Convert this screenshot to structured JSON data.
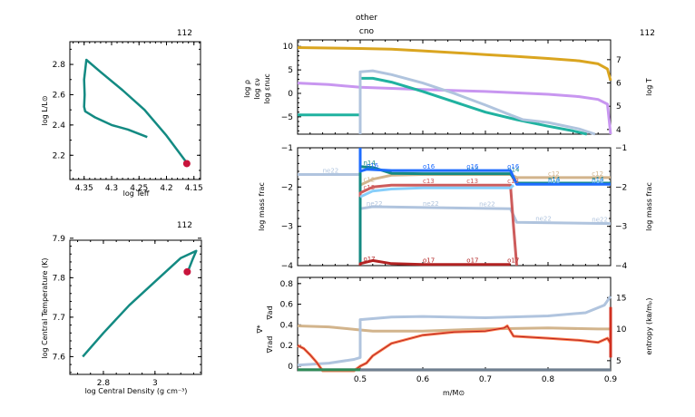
{
  "model_number": "112",
  "colors": {
    "track": "#138a82",
    "marker": "#c8143c",
    "logT": "#daa520",
    "logRho": "#c896f0",
    "eps_nu": "#20b2a0",
    "eps_nuc": "#b0c4de",
    "n14": "#138a82",
    "o16": "#1e6cff",
    "c12": "#d2b48c",
    "c13": "#cd5c5c",
    "n15": "#87cefa",
    "ne22": "#b0c4de",
    "o17": "#b22222",
    "grad_ad": "#d2b48c",
    "grad_star": "#b22222",
    "grad_rad": "#ff7f50",
    "entropy": "#b0c4de",
    "bottom_line": "#708090",
    "bottom_green": "#2e8b57"
  },
  "chart_data": [
    {
      "id": "hr",
      "type": "line",
      "title": "112",
      "xlabel": "log Teff",
      "ylabel": "log L/L⊙",
      "xlim": [
        4.376,
        4.138
      ],
      "ylim": [
        2.04,
        2.95
      ],
      "xticks": [
        4.35,
        4.3,
        4.25,
        4.2,
        4.15
      ],
      "xtick_labels": [
        "4.35",
        "4.3",
        "4.25",
        "4.2",
        "4.15"
      ],
      "yticks": [
        2.2,
        2.4,
        2.6,
        2.8
      ],
      "ytick_labels": [
        "2.2",
        "2.4",
        "2.6",
        "2.8"
      ],
      "series": [
        {
          "name": "track",
          "x": [
            4.235,
            4.27,
            4.3,
            4.33,
            4.348,
            4.35,
            4.349,
            4.35,
            4.346,
            4.32,
            4.28,
            4.24,
            4.2,
            4.163
          ],
          "y": [
            2.32,
            2.37,
            2.4,
            2.45,
            2.49,
            2.52,
            2.6,
            2.7,
            2.83,
            2.75,
            2.63,
            2.5,
            2.33,
            2.15
          ]
        }
      ],
      "current_point": {
        "x": 4.163,
        "y": 2.145
      }
    },
    {
      "id": "central",
      "type": "line",
      "title": "112",
      "xlabel": "log Central Density (g cm⁻³)",
      "ylabel": "log Central Temperature (K)",
      "xlim": [
        2.67,
        3.18
      ],
      "ylim": [
        7.555,
        7.895
      ],
      "xticks": [
        2.8,
        3.0
      ],
      "xtick_labels": [
        "2.8",
        "3"
      ],
      "yticks": [
        7.6,
        7.7,
        7.8,
        7.9
      ],
      "ytick_labels": [
        "7.6",
        "7.7",
        "7.8",
        "7.9"
      ],
      "series": [
        {
          "name": "track",
          "x": [
            2.72,
            2.8,
            2.9,
            3.0,
            3.1,
            3.16,
            3.145,
            3.13
          ],
          "y": [
            7.6,
            7.66,
            7.73,
            7.79,
            7.85,
            7.868,
            7.845,
            7.82
          ]
        }
      ],
      "current_point": {
        "x": 3.125,
        "y": 7.815
      }
    },
    {
      "id": "profile-top",
      "type": "line",
      "xlim": [
        0.4,
        0.9
      ],
      "ylim": [
        -8.7,
        11.4
      ],
      "ylim_right": [
        3.8,
        7.85
      ],
      "yticks": [
        10,
        5,
        0,
        -5
      ],
      "ytick_labels": [
        "10",
        "5",
        "0",
        "−5"
      ],
      "yticks_right": [
        7,
        6,
        5,
        4
      ],
      "ytick_right_labels": [
        "7",
        "6",
        "5",
        "4"
      ],
      "ylabels_left": [
        "log ρ",
        "log εν",
        "log εnuc"
      ],
      "ylabel_right": "log T",
      "top_annotations": [
        "other",
        "cno"
      ],
      "series": [
        {
          "name": "log T",
          "axis": "right",
          "color_key": "logT",
          "x": [
            0.4,
            0.5,
            0.55,
            0.6,
            0.65,
            0.7,
            0.75,
            0.8,
            0.85,
            0.88,
            0.895,
            0.9
          ],
          "y": [
            7.52,
            7.48,
            7.45,
            7.38,
            7.3,
            7.22,
            7.14,
            7.05,
            6.95,
            6.82,
            6.6,
            6.1
          ]
        },
        {
          "name": "log rho",
          "axis": "left",
          "color_key": "logRho",
          "x": [
            0.4,
            0.45,
            0.5,
            0.6,
            0.7,
            0.8,
            0.85,
            0.88,
            0.895,
            0.9
          ],
          "y": [
            2.2,
            1.9,
            1.3,
            0.8,
            0.4,
            -0.2,
            -0.7,
            -1.3,
            -2.3,
            -8.7
          ]
        },
        {
          "name": "log eps_nu",
          "axis": "left",
          "color_key": "eps_nu",
          "x": [
            0.4,
            0.5,
            0.5,
            0.52,
            0.55,
            0.6,
            0.65,
            0.7,
            0.75,
            0.8,
            0.84,
            0.862
          ],
          "y": [
            -4.6,
            -4.6,
            3.2,
            3.2,
            2.4,
            0.4,
            -1.8,
            -4.0,
            -5.6,
            -7.0,
            -8.0,
            -8.7
          ]
        },
        {
          "name": "log eps_nuc",
          "axis": "left",
          "color_key": "eps_nuc",
          "x": [
            0.5,
            0.5,
            0.52,
            0.55,
            0.6,
            0.65,
            0.7,
            0.74,
            0.76,
            0.8,
            0.85,
            0.875
          ],
          "y": [
            -8.7,
            4.6,
            4.8,
            4.0,
            2.2,
            0.0,
            -2.5,
            -4.6,
            -5.6,
            -6.2,
            -7.6,
            -8.7
          ]
        }
      ]
    },
    {
      "id": "profile-middle",
      "type": "line",
      "xlim": [
        0.4,
        0.9
      ],
      "ylim": [
        -4,
        -1
      ],
      "yticks": [
        -1,
        -2,
        -3,
        -4
      ],
      "ytick_labels": [
        "−1",
        "−2",
        "−3",
        "−4"
      ],
      "ylabel_left": "log mass frac",
      "ylabel_right": "log mass frac",
      "series": [
        {
          "name": "ne22",
          "color_key": "ne22",
          "x": [
            0.4,
            0.5,
            0.5,
            0.52,
            0.6,
            0.74,
            0.75,
            0.9
          ],
          "y": [
            -1.68,
            -1.68,
            -2.55,
            -2.5,
            -2.52,
            -2.55,
            -2.9,
            -2.93
          ],
          "label_x": [
            0.44,
            0.51,
            0.6,
            0.69,
            0.78,
            0.87
          ]
        },
        {
          "name": "c12",
          "color_key": "c12",
          "x": [
            0.5,
            0.52,
            0.55,
            0.6,
            0.74,
            0.75,
            0.9
          ],
          "y": [
            -1.95,
            -1.8,
            -1.7,
            -1.68,
            -1.68,
            -1.76,
            -1.76
          ],
          "label_x": [
            0.505,
            0.8,
            0.87
          ]
        },
        {
          "name": "n14",
          "color_key": "n14",
          "x": [
            0.5,
            0.5,
            0.52,
            0.55,
            0.6,
            0.74,
            0.75,
            0.9
          ],
          "y": [
            -4.0,
            -1.48,
            -1.5,
            -1.65,
            -1.66,
            -1.66,
            -1.9,
            -1.9
          ],
          "label_x": [
            0.505,
            0.67,
            0.735,
            0.8,
            0.87
          ]
        },
        {
          "name": "o16",
          "color_key": "o16",
          "x": [
            0.5,
            0.5,
            0.51,
            0.55,
            0.74,
            0.75,
            0.9
          ],
          "y": [
            -1.0,
            -1.6,
            -1.55,
            -1.58,
            -1.58,
            -1.93,
            -1.93
          ],
          "label_x": [
            0.51,
            0.6,
            0.67,
            0.735,
            0.8,
            0.87
          ]
        },
        {
          "name": "c13",
          "color_key": "c13",
          "x": [
            0.5,
            0.5,
            0.52,
            0.55,
            0.6,
            0.74,
            0.745,
            0.75
          ],
          "y": [
            -2.25,
            -2.15,
            -2.0,
            -1.95,
            -1.95,
            -1.95,
            -3.0,
            -4.0
          ],
          "label_x": [
            0.505,
            0.6,
            0.67,
            0.735
          ]
        },
        {
          "name": "n15",
          "color_key": "n15",
          "x": [
            0.5,
            0.52,
            0.55,
            0.6,
            0.74,
            0.745
          ],
          "y": [
            -2.25,
            -2.1,
            -2.05,
            -2.02,
            -2.02,
            -1.95
          ],
          "label_x": [
            0.8,
            0.87
          ]
        },
        {
          "name": "o17",
          "color_key": "o17",
          "x": [
            0.5,
            0.5,
            0.52,
            0.55,
            0.6,
            0.74
          ],
          "y": [
            -4.0,
            -3.95,
            -3.87,
            -3.95,
            -3.97,
            -3.97
          ],
          "label_x": [
            0.505,
            0.6,
            0.67,
            0.735
          ]
        }
      ]
    },
    {
      "id": "profile-bottom",
      "type": "line",
      "xlim": [
        0.4,
        0.9
      ],
      "ylim": [
        -0.045,
        0.86
      ],
      "ylim_right": [
        3.4,
        18.2
      ],
      "yticks": [
        0.8,
        0.6,
        0.4,
        0.2,
        0
      ],
      "ytick_labels": [
        "0.8",
        "0.6",
        "0.4",
        "0.2",
        "0"
      ],
      "yticks_right": [
        15,
        10,
        5
      ],
      "ytick_right_labels": [
        "15",
        "10",
        "5"
      ],
      "xticks": [
        0.5,
        0.6,
        0.7,
        0.8,
        0.9
      ],
      "xtick_labels": [
        "0.5",
        "0.6",
        "0.7",
        "0.8",
        "0.9"
      ],
      "xlabel": "m/M⊙",
      "ylabels_left": [
        "∇ad",
        "∇*",
        "∇rad"
      ],
      "ylabel_right": "entropy (kʙ/mₚ)",
      "series": [
        {
          "name": "grad_ad",
          "axis": "left",
          "color_key": "grad_ad",
          "x": [
            0.4,
            0.45,
            0.5,
            0.52,
            0.6,
            0.7,
            0.8,
            0.88,
            0.9
          ],
          "y": [
            0.39,
            0.38,
            0.35,
            0.34,
            0.34,
            0.36,
            0.37,
            0.36,
            0.36
          ]
        },
        {
          "name": "entropy",
          "axis": "right",
          "color_key": "entropy",
          "x": [
            0.4,
            0.45,
            0.49,
            0.5,
            0.5,
            0.55,
            0.6,
            0.7,
            0.8,
            0.86,
            0.89,
            0.9
          ],
          "y": [
            4.3,
            4.6,
            5.2,
            5.5,
            11.5,
            11.9,
            12.0,
            11.8,
            12.1,
            12.6,
            13.8,
            15.2
          ]
        },
        {
          "name": "grad_rad",
          "axis": "left",
          "color_key": "grad_rad",
          "x": [
            0.4,
            0.41,
            0.42,
            0.43,
            0.44,
            0.49,
            0.5,
            0.51,
            0.52,
            0.55,
            0.6,
            0.65,
            0.7,
            0.73,
            0.735,
            0.745,
            0.8,
            0.85,
            0.88,
            0.895,
            0.9
          ],
          "y": [
            0.2,
            0.17,
            0.11,
            0.04,
            -0.045,
            -0.045,
            0.0,
            0.03,
            0.1,
            0.22,
            0.3,
            0.33,
            0.34,
            0.37,
            0.39,
            0.29,
            0.27,
            0.25,
            0.23,
            0.27,
            0.22
          ]
        },
        {
          "name": "bottom_zero",
          "axis": "left",
          "color_key": "bottom_line",
          "x": [
            0.4,
            0.9
          ],
          "y": [
            -0.035,
            -0.035
          ]
        },
        {
          "name": "bottom_green",
          "axis": "left",
          "color_key": "bottom_green",
          "x": [
            0.4,
            0.5
          ],
          "y": [
            -0.035,
            -0.035
          ]
        }
      ]
    }
  ]
}
